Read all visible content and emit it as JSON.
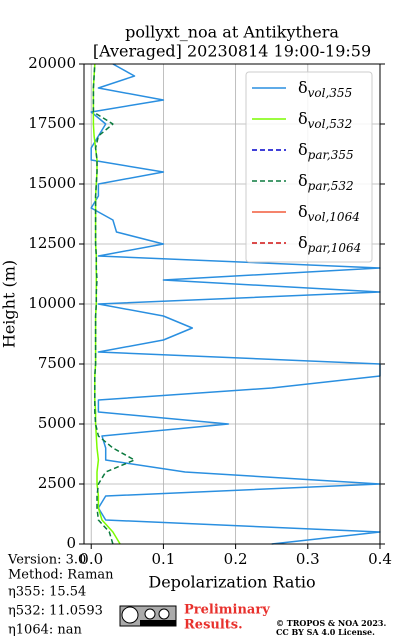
{
  "chart_data": {
    "type": "line",
    "title": [
      "pollyxt_noa at Antikythera",
      "[Averaged] 20230814 19:00-19:59"
    ],
    "xlabel": "Depolarization Ratio",
    "ylabel": "Height (m)",
    "xlim": [
      -0.01,
      0.4
    ],
    "ylim": [
      0,
      20000
    ],
    "xticks": [
      {
        "value": 0,
        "label": "0.0"
      },
      0.1,
      0.2,
      0.3,
      0.4
    ],
    "yticks": [
      0,
      2500,
      5000,
      7500,
      10000,
      12500,
      15000,
      17500,
      20000
    ],
    "grid": true,
    "legend": "upper right",
    "y": [
      0,
      500,
      1000,
      1500,
      2000,
      2500,
      3000,
      3500,
      4000,
      4500,
      5000,
      5500,
      6000,
      6500,
      7000,
      7500,
      8000,
      8500,
      9000,
      9500,
      10000,
      10500,
      11000,
      11500,
      12000,
      12500,
      13000,
      13500,
      14000,
      14500,
      15000,
      15500,
      16000,
      16500,
      17000,
      17500,
      18000,
      18500,
      19000,
      19500,
      20000
    ],
    "series": [
      {
        "name": "δvol,355",
        "color": "#2a8fe0",
        "dash": "solid",
        "values": [
          0.25,
          0.4,
          0.02,
          0.01,
          0.02,
          0.4,
          0.13,
          0.02,
          0.02,
          0.015,
          0.19,
          0.01,
          0.01,
          0.25,
          0.4,
          0.4,
          0.01,
          0.1,
          0.14,
          0.1,
          0.01,
          0.4,
          0.1,
          0.4,
          0.01,
          0.1,
          0.035,
          0.03,
          0.0,
          0.01,
          0.01,
          0.1,
          0.0,
          0.0,
          0.01,
          0.02,
          0.0,
          0.1,
          0.01,
          0.06,
          0.03
        ]
      },
      {
        "name": "δvol,532",
        "color": "#7cfc00",
        "dash": "solid",
        "values": [
          0.04,
          0.03,
          0.015,
          0.01,
          0.01,
          0.008,
          0.008,
          0.01,
          0.008,
          0.007,
          0.006,
          0.006,
          0.005,
          0.005,
          0.005,
          0.006,
          0.006,
          0.006,
          0.006,
          0.006,
          0.007,
          0.007,
          0.007,
          0.007,
          0.007,
          0.006,
          0.006,
          0.006,
          0.006,
          0.006,
          0.007,
          0.008,
          0.008,
          0.006,
          0.004,
          0.003,
          0.003,
          0.003,
          0.003,
          0.004,
          0.005
        ]
      },
      {
        "name": "δpar,355",
        "color": "#0000cc",
        "dash": "dashed",
        "values": [
          null,
          null,
          null,
          null,
          null,
          null,
          null,
          null,
          null,
          null,
          null,
          null,
          null,
          null,
          null,
          null,
          null,
          null,
          null,
          null,
          null,
          null,
          null,
          null,
          null,
          null,
          null,
          null,
          null,
          null,
          null,
          null,
          null,
          null,
          null,
          null,
          null,
          null,
          null,
          null,
          null
        ]
      },
      {
        "name": "δpar,532",
        "color": "#0b7a3e",
        "dash": "dashed",
        "values": [
          0.03,
          0.025,
          0.01,
          0.008,
          0.008,
          0.01,
          0.02,
          0.06,
          0.03,
          0.01,
          0.006,
          0.005,
          0.005,
          0.005,
          0.005,
          0.006,
          0.006,
          0.006,
          0.006,
          0.006,
          0.007,
          0.007,
          0.008,
          0.007,
          0.007,
          0.006,
          0.006,
          0.006,
          0.006,
          0.006,
          0.007,
          0.008,
          0.008,
          0.006,
          0.01,
          0.03,
          0.003,
          0.003,
          0.003,
          0.004,
          0.005
        ]
      },
      {
        "name": "δvol,1064",
        "color": "#f25c3c",
        "dash": "solid",
        "values": [
          null,
          null,
          null,
          null,
          null,
          null,
          null,
          null,
          null,
          null,
          null,
          null,
          null,
          null,
          null,
          null,
          null,
          null,
          null,
          null,
          null,
          null,
          null,
          null,
          null,
          null,
          null,
          null,
          null,
          null,
          null,
          null,
          null,
          null,
          null,
          null,
          null,
          null,
          null,
          null,
          null
        ]
      },
      {
        "name": "δpar,1064",
        "color": "#d01010",
        "dash": "dashed",
        "values": [
          null,
          null,
          null,
          null,
          null,
          null,
          null,
          null,
          null,
          null,
          null,
          null,
          null,
          null,
          null,
          null,
          null,
          null,
          null,
          null,
          null,
          null,
          null,
          null,
          null,
          null,
          null,
          null,
          null,
          null,
          null,
          null,
          null,
          null,
          null,
          null,
          null,
          null,
          null,
          null,
          null
        ]
      }
    ]
  },
  "info": [
    "Version: 3.0",
    "Method: Raman",
    "η355:  15.54",
    "η532: 11.0593",
    "η1064:    nan"
  ],
  "notes": {
    "preliminary": [
      "Preliminary",
      "Results."
    ],
    "copyright": [
      "© TROPOS & NOA 2023.",
      "CC BY SA 4.0 License."
    ]
  }
}
